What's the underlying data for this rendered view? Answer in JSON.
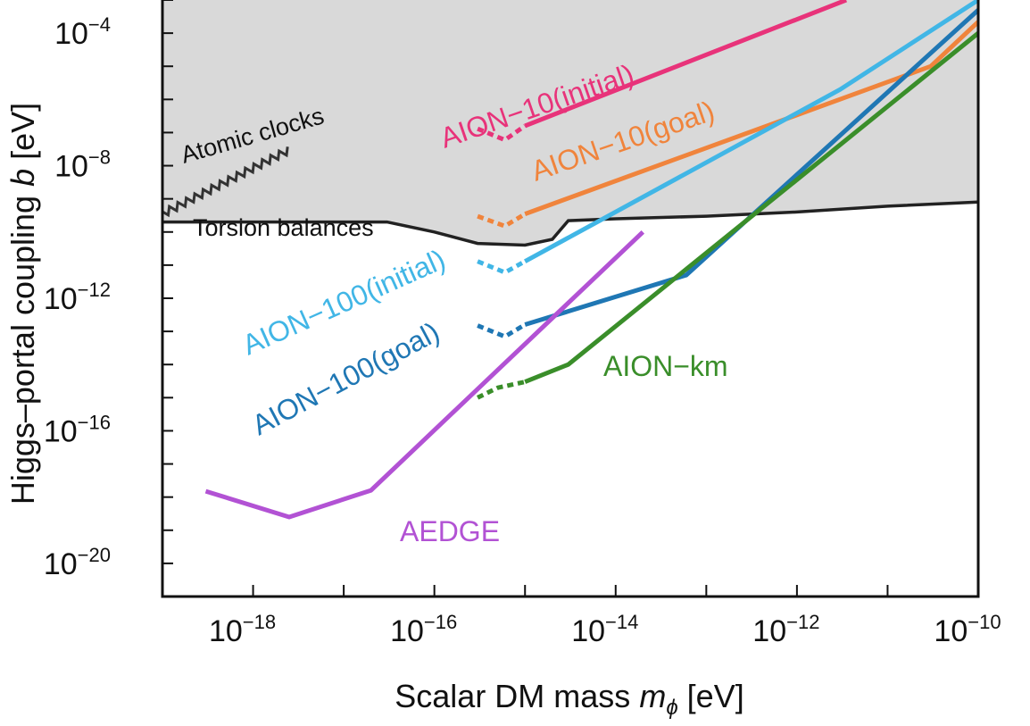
{
  "chart_data": {
    "type": "line",
    "xlabel": "Scalar DM mass m_ϕ [eV]",
    "xlabel_main": "Scalar DM mass ",
    "xlabel_sym": "m",
    "xlabel_sub": "ϕ",
    "xlabel_unit": " [eV]",
    "ylabel": "Higgs-portal coupling b [eV]",
    "ylabel_main": "Higgs–portal coupling ",
    "ylabel_sym": "b",
    "ylabel_unit": " [eV]",
    "x_scale": "log",
    "y_scale": "log",
    "xlim": [
      1e-19,
      1e-10
    ],
    "ylim": [
      1e-21,
      0.001
    ],
    "x_ticks": [
      {
        "value": 1e-18,
        "base": "10",
        "exp": "−18"
      },
      {
        "value": 1e-16,
        "base": "10",
        "exp": "−16"
      },
      {
        "value": 1e-14,
        "base": "10",
        "exp": "−14"
      },
      {
        "value": 1e-12,
        "base": "10",
        "exp": "−12"
      },
      {
        "value": 1e-10,
        "base": "10",
        "exp": "−10"
      }
    ],
    "y_ticks": [
      {
        "value": 0.0001,
        "base": "10",
        "exp": "−4"
      },
      {
        "value": 1e-08,
        "base": "10",
        "exp": "−8"
      },
      {
        "value": 1e-12,
        "base": "10",
        "exp": "−12"
      },
      {
        "value": 1e-16,
        "base": "10",
        "exp": "−16"
      },
      {
        "value": 1e-20,
        "base": "10",
        "exp": "−20"
      }
    ],
    "excluded_region": {
      "name": "Torsion balances",
      "fill_color": "#d9d9d9",
      "boundary_color": "#222222",
      "boundary": [
        [
          1e-19,
          2e-10
        ],
        [
          3e-19,
          2e-10
        ],
        [
          1e-18,
          2e-10
        ],
        [
          1e-17,
          2e-10
        ],
        [
          3e-17,
          2e-10
        ],
        [
          1e-16,
          1e-10
        ],
        [
          3e-16,
          4.5e-11
        ],
        [
          1e-15,
          4e-11
        ],
        [
          2e-15,
          6e-11
        ],
        [
          3e-15,
          2.2e-10
        ],
        [
          1e-14,
          2.5e-10
        ],
        [
          1e-13,
          3e-10
        ],
        [
          1e-12,
          4e-10
        ],
        [
          1e-11,
          6e-10
        ],
        [
          1e-10,
          8e-10
        ]
      ]
    },
    "atomic_clocks": {
      "name": "Atomic clocks",
      "color": "#333333",
      "points": [
        [
          1e-19,
          3.5e-10
        ],
        [
          2.5e-18,
          3e-08
        ]
      ]
    },
    "series": [
      {
        "name": "AION−10(initial)",
        "color": "#e8337a",
        "dashed": [
          [
            3e-16,
            1.3e-07
          ],
          [
            6e-16,
            6e-08
          ],
          [
            1e-15,
            1.6e-07
          ]
        ],
        "solid": [
          [
            1e-15,
            1.6e-07
          ],
          [
            3.5e-12,
            0.001
          ]
        ]
      },
      {
        "name": "AION−10(goal)",
        "color": "#f0843c",
        "dashed": [
          [
            3e-16,
            3e-10
          ],
          [
            6e-16,
            1.5e-10
          ],
          [
            1e-15,
            3.5e-10
          ]
        ],
        "solid": [
          [
            1e-15,
            3.5e-10
          ],
          [
            3e-11,
            1e-05
          ],
          [
            1e-10,
            0.00022
          ]
        ]
      },
      {
        "name": "AION−100(initial)",
        "color": "#41b6e6",
        "dashed": [
          [
            3e-16,
            1.3e-11
          ],
          [
            6e-16,
            6e-12
          ],
          [
            1e-15,
            1.3e-11
          ]
        ],
        "solid": [
          [
            1e-15,
            1.3e-11
          ],
          [
            3e-12,
            2e-06
          ],
          [
            1e-10,
            0.001
          ]
        ]
      },
      {
        "name": "AION−100(goal)",
        "color": "#1f77b4",
        "dashed": [
          [
            3e-16,
            1.5e-13
          ],
          [
            6e-16,
            7e-14
          ],
          [
            1e-15,
            1.6e-13
          ]
        ],
        "solid": [
          [
            1e-15,
            1.6e-13
          ],
          [
            6e-14,
            5e-12
          ],
          [
            1e-10,
            0.0005
          ]
        ]
      },
      {
        "name": "AION−km",
        "color": "#3a8e2a",
        "dashed": [
          [
            3e-16,
            1e-15
          ],
          [
            5e-16,
            2e-15
          ],
          [
            1e-15,
            3e-15
          ]
        ],
        "solid": [
          [
            1e-15,
            3e-15
          ],
          [
            3e-15,
            1e-14
          ],
          [
            1e-10,
            0.0001
          ]
        ]
      },
      {
        "name": "AEDGE",
        "color": "#b252d4",
        "dashed": [],
        "solid": [
          [
            3e-19,
            1.5e-18
          ],
          [
            2.5e-18,
            2.5e-19
          ],
          [
            2e-17,
            1.6e-18
          ],
          [
            2e-14,
            1e-10
          ]
        ]
      }
    ],
    "annotations": [
      {
        "text": "Atomic clocks",
        "color": "#111111"
      },
      {
        "text": "Torsion balances",
        "color": "#111111"
      },
      {
        "text": "AION−10(initial)",
        "color": "#e8337a"
      },
      {
        "text": "AION−10(goal)",
        "color": "#f0843c"
      },
      {
        "text": "AION−100(initial)",
        "color": "#41b6e6"
      },
      {
        "text": "AION−100(goal)",
        "color": "#1f77b4"
      },
      {
        "text": "AION−km",
        "color": "#3a8e2a"
      },
      {
        "text": "AEDGE",
        "color": "#b252d4"
      }
    ],
    "grid": false,
    "legend": "none"
  }
}
